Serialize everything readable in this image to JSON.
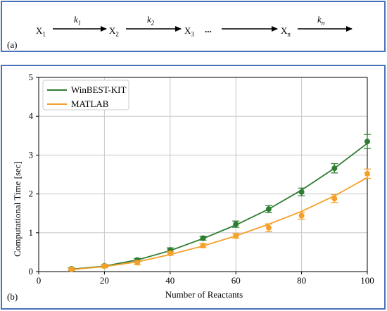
{
  "panel_a": {
    "label": "(a)",
    "species": [
      {
        "main": "X",
        "sub": "1"
      },
      {
        "main": "X",
        "sub": "2"
      },
      {
        "main": "X",
        "sub": "3"
      },
      {
        "main": "X",
        "sub": "n"
      }
    ],
    "rates": [
      {
        "main": "k",
        "sub": "1"
      },
      {
        "main": "k",
        "sub": "2"
      },
      {
        "main": "k",
        "sub": "n"
      }
    ],
    "ellipsis": "..."
  },
  "panel_b": {
    "label": "(b)"
  },
  "colors": {
    "winbest": "#2e7d32",
    "matlab": "#f5a028",
    "frame": "#4a72b8"
  },
  "chart_data": {
    "type": "line",
    "xlabel": "Number of Reactants",
    "ylabel": "Computational Time [sec]",
    "xlim": [
      0,
      100
    ],
    "ylim": [
      0,
      5
    ],
    "xticks": [
      "0",
      "20",
      "40",
      "60",
      "80",
      "100"
    ],
    "yticks": [
      "0",
      "1",
      "2",
      "3",
      "4",
      "5"
    ],
    "grid": true,
    "legend_position": "top-left",
    "x": [
      10,
      20,
      30,
      40,
      50,
      60,
      70,
      80,
      90,
      100
    ],
    "series": [
      {
        "name": "WinBEST-KIT",
        "fit": [
          0.06,
          0.14,
          0.3,
          0.54,
          0.85,
          1.2,
          1.61,
          2.1,
          2.66,
          3.3
        ],
        "points": [
          0.07,
          0.15,
          0.3,
          0.56,
          0.86,
          1.22,
          1.61,
          2.05,
          2.66,
          3.35
        ],
        "errors": [
          0.03,
          0.03,
          0.04,
          0.05,
          0.05,
          0.08,
          0.09,
          0.1,
          0.12,
          0.18
        ]
      },
      {
        "name": "MATLAB",
        "fit": [
          0.05,
          0.13,
          0.25,
          0.44,
          0.66,
          0.92,
          1.22,
          1.55,
          1.95,
          2.42
        ],
        "points": [
          0.06,
          0.14,
          0.23,
          0.47,
          0.67,
          0.92,
          1.13,
          1.44,
          1.88,
          2.52
        ],
        "errors": [
          0.03,
          0.04,
          0.05,
          0.05,
          0.05,
          0.06,
          0.1,
          0.09,
          0.1,
          0.12
        ]
      }
    ]
  }
}
